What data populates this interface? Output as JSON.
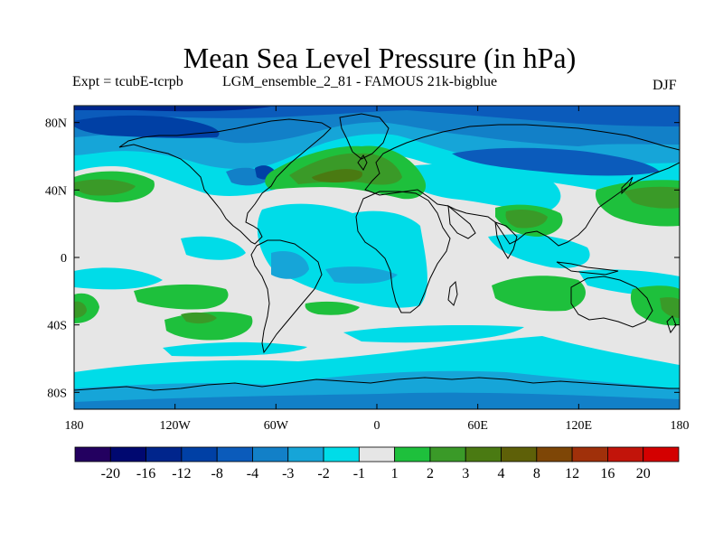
{
  "title": "Mean Sea Level Pressure (in hPa)",
  "subtitle_left": "Expt = tcubE-tcrpb",
  "subtitle_center": "LGM_ensemble_2_81 - FAMOUS 21k-bigblue",
  "season": "DJF",
  "lat_ticks": [
    {
      "value": 80,
      "label": "80N"
    },
    {
      "value": 40,
      "label": "40N"
    },
    {
      "value": 0,
      "label": "0"
    },
    {
      "value": -40,
      "label": "40S"
    },
    {
      "value": -80,
      "label": "80S"
    }
  ],
  "lon_ticks": [
    {
      "value": -180,
      "label": "180"
    },
    {
      "value": -120,
      "label": "120W"
    },
    {
      "value": -60,
      "label": "60W"
    },
    {
      "value": 0,
      "label": "0"
    },
    {
      "value": 60,
      "label": "60E"
    },
    {
      "value": 120,
      "label": "120E"
    },
    {
      "value": 180,
      "label": "180"
    }
  ],
  "colorbar": {
    "colors": [
      "#230060",
      "#000870",
      "#00258c",
      "#0040a5",
      "#0b5bbb",
      "#1280c8",
      "#16a5d8",
      "#00dce8",
      "#e6e6e6",
      "#1ec03c",
      "#3a9a28",
      "#4a7a12",
      "#5e6008",
      "#7e4606",
      "#a0300a",
      "#c2140a",
      "#d40000"
    ],
    "labels": [
      "-20",
      "-16",
      "-12",
      "-8",
      "-4",
      "-3",
      "-2",
      "-1",
      "1",
      "2",
      "3",
      "4",
      "8",
      "12",
      "16",
      "20"
    ]
  },
  "map_colors": {
    "neutral": "#e6e6e6",
    "neg1": "#00dce8",
    "neg2": "#16a5d8",
    "neg3": "#1280c8",
    "neg4": "#0b5bbb",
    "neg8": "#0040a5",
    "neg12": "#00258c",
    "pos1": "#1ec03c",
    "pos2": "#3a9a28",
    "pos3": "#4a7a12"
  }
}
